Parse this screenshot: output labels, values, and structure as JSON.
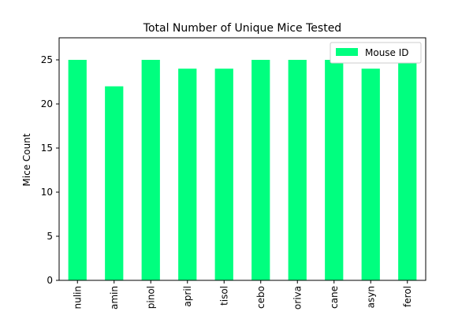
{
  "chart_data": {
    "type": "bar",
    "title": "Total Number of Unique Mice Tested",
    "xlabel": "",
    "ylabel": "Mice Count",
    "categories": [
      "nulin",
      "amin",
      "pinol",
      "april",
      "tisol",
      "cebo",
      "oriva",
      "cane",
      "asyn",
      "ferol"
    ],
    "series": [
      {
        "name": "Mouse ID",
        "values": [
          25,
          22,
          25,
          24,
          24,
          25,
          25,
          25,
          24,
          25
        ]
      }
    ],
    "ylim": [
      0,
      27.5
    ],
    "yticks": [
      0,
      5,
      10,
      15,
      20,
      25
    ],
    "grid": false,
    "legend_position": "top-right",
    "bar_color": "#00ff7f"
  }
}
